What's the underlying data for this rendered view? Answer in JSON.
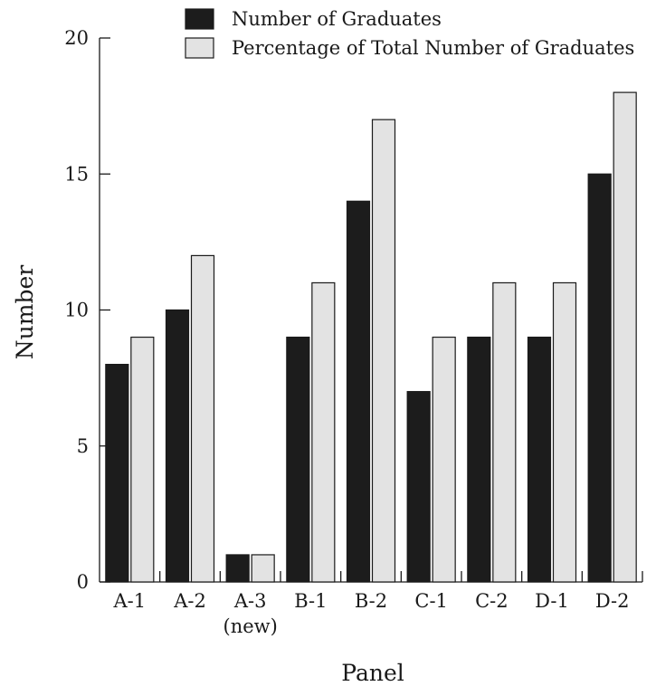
{
  "chart_data": {
    "type": "bar",
    "xlabel": "Panel",
    "ylabel": "Number",
    "ylim": [
      0,
      20
    ],
    "yticks": [
      0,
      5,
      10,
      15,
      20
    ],
    "categories": [
      [
        "A-1"
      ],
      [
        "A-2"
      ],
      [
        "A-3",
        "(new)"
      ],
      [
        "B-1"
      ],
      [
        "B-2"
      ],
      [
        "C-1"
      ],
      [
        "C-2"
      ],
      [
        "D-1"
      ],
      [
        "D-2"
      ]
    ],
    "series": [
      {
        "name": "Number of Graduates",
        "color": "#1c1c1c",
        "values": [
          8,
          10,
          1,
          9,
          14,
          7,
          9,
          9,
          15
        ]
      },
      {
        "name": "Percentage of Total Number of Graduates",
        "color": "#e3e3e3",
        "values": [
          9,
          12,
          1,
          11,
          17,
          9,
          11,
          11,
          18
        ]
      }
    ],
    "legend_position": "top-right",
    "grid": false
  }
}
